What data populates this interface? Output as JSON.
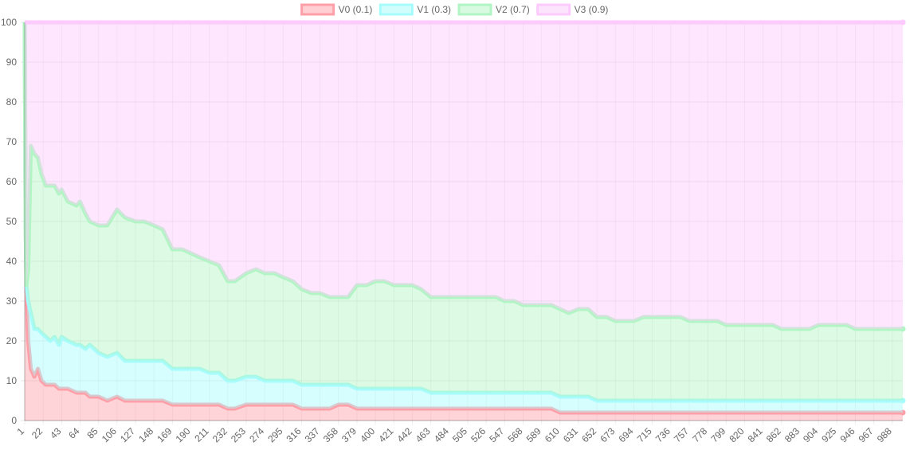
{
  "chart_data": {
    "type": "area",
    "stacked": true,
    "grid": true,
    "legend_position": "top",
    "ylim": [
      0,
      100
    ],
    "y_ticks": [
      0,
      10,
      20,
      30,
      40,
      50,
      60,
      70,
      80,
      90,
      100
    ],
    "x_tick_labels": [
      "1",
      "22",
      "43",
      "64",
      "85",
      "106",
      "127",
      "148",
      "169",
      "190",
      "211",
      "232",
      "253",
      "274",
      "295",
      "316",
      "337",
      "358",
      "379",
      "400",
      "421",
      "442",
      "463",
      "484",
      "505",
      "526",
      "547",
      "568",
      "589",
      "610",
      "631",
      "652",
      "673",
      "694",
      "715",
      "736",
      "757",
      "778",
      "799",
      "820",
      "841",
      "862",
      "883",
      "904",
      "925",
      "946",
      "967",
      "988"
    ],
    "x_range": [
      1,
      1000
    ],
    "x": [
      1,
      2,
      3,
      5,
      8,
      12,
      16,
      20,
      25,
      30,
      35,
      40,
      43,
      50,
      60,
      64,
      70,
      75,
      85,
      95,
      106,
      115,
      127,
      137,
      148,
      158,
      169,
      180,
      190,
      200,
      211,
      222,
      232,
      240,
      253,
      264,
      274,
      285,
      295,
      306,
      316,
      327,
      337,
      348,
      358,
      369,
      379,
      390,
      400,
      410,
      421,
      432,
      442,
      452,
      463,
      474,
      484,
      495,
      505,
      516,
      526,
      537,
      547,
      558,
      568,
      579,
      589,
      600,
      610,
      620,
      631,
      642,
      652,
      663,
      673,
      684,
      694,
      705,
      715,
      726,
      736,
      747,
      757,
      768,
      778,
      789,
      799,
      810,
      820,
      831,
      841,
      852,
      862,
      873,
      883,
      894,
      904,
      915,
      925,
      936,
      946,
      957,
      967,
      978,
      988,
      1000
    ],
    "series": [
      {
        "name": "V0 (0.1)",
        "color": "#ff9fa8",
        "values": [
          100,
          50,
          33,
          20,
          13,
          11,
          13,
          10,
          9,
          9,
          9,
          8,
          8,
          8,
          7,
          7,
          7,
          6,
          6,
          5,
          6,
          5,
          5,
          5,
          5,
          5,
          4,
          4,
          4,
          4,
          4,
          4,
          3,
          3,
          4,
          4,
          4,
          4,
          4,
          4,
          3,
          3,
          3,
          3,
          4,
          4,
          3,
          3,
          3,
          3,
          3,
          3,
          3,
          3,
          3,
          3,
          3,
          3,
          3,
          3,
          3,
          3,
          3,
          3,
          3,
          3,
          3,
          3,
          2,
          2,
          2,
          2,
          2,
          2,
          2,
          2,
          2,
          2,
          2,
          2,
          2,
          2,
          2,
          2,
          2,
          2,
          2,
          2,
          2,
          2,
          2,
          2,
          2,
          2,
          2,
          2,
          2,
          2,
          2,
          2,
          2,
          2,
          2,
          2,
          2,
          2
        ]
      },
      {
        "name": "V1 (0.3)",
        "color": "#a6fcfc",
        "values": [
          0,
          0,
          1,
          10,
          14,
          12,
          10,
          12,
          12,
          11,
          12,
          11,
          13,
          12,
          12,
          12,
          11,
          13,
          11,
          11,
          11,
          10,
          10,
          10,
          10,
          10,
          9,
          9,
          9,
          9,
          8,
          8,
          7,
          7,
          7,
          7,
          6,
          6,
          6,
          6,
          6,
          6,
          6,
          6,
          5,
          5,
          5,
          5,
          5,
          5,
          5,
          5,
          5,
          5,
          4,
          4,
          4,
          4,
          4,
          4,
          4,
          4,
          4,
          4,
          4,
          4,
          4,
          4,
          4,
          4,
          4,
          4,
          3,
          3,
          3,
          3,
          3,
          3,
          3,
          3,
          3,
          3,
          3,
          3,
          3,
          3,
          3,
          3,
          3,
          3,
          3,
          3,
          3,
          3,
          3,
          3,
          3,
          3,
          3,
          3,
          3,
          3,
          3,
          3,
          3,
          3
        ]
      },
      {
        "name": "V2 (0.7)",
        "color": "#b2f5c4",
        "values": [
          0,
          0,
          0,
          8,
          42,
          44,
          43,
          40,
          38,
          39,
          38,
          38,
          37,
          35,
          35,
          36,
          34,
          31,
          32,
          33,
          36,
          36,
          35,
          35,
          34,
          33,
          30,
          30,
          29,
          28,
          28,
          27,
          25,
          25,
          26,
          27,
          27,
          27,
          26,
          25,
          24,
          23,
          23,
          22,
          22,
          22,
          26,
          26,
          27,
          27,
          26,
          26,
          26,
          25,
          24,
          24,
          24,
          24,
          24,
          24,
          24,
          24,
          23,
          23,
          22,
          22,
          22,
          22,
          22,
          21,
          22,
          22,
          21,
          21,
          20,
          20,
          20,
          21,
          21,
          21,
          21,
          21,
          20,
          20,
          20,
          20,
          19,
          19,
          19,
          19,
          19,
          19,
          18,
          18,
          18,
          18,
          19,
          19,
          19,
          19,
          18,
          18,
          18,
          18,
          18,
          18
        ]
      },
      {
        "name": "V3 (0.9)",
        "color": "#fccafc",
        "values": [
          0,
          50,
          66,
          62,
          31,
          33,
          34,
          38,
          41,
          41,
          41,
          43,
          42,
          45,
          46,
          45,
          48,
          50,
          51,
          51,
          47,
          49,
          50,
          50,
          51,
          52,
          57,
          57,
          58,
          59,
          60,
          61,
          65,
          65,
          63,
          62,
          63,
          63,
          64,
          65,
          67,
          68,
          68,
          69,
          69,
          69,
          66,
          66,
          65,
          65,
          66,
          66,
          66,
          67,
          69,
          69,
          69,
          69,
          69,
          69,
          69,
          69,
          70,
          70,
          71,
          71,
          71,
          71,
          72,
          73,
          72,
          72,
          74,
          74,
          75,
          75,
          75,
          74,
          74,
          74,
          74,
          74,
          75,
          75,
          75,
          75,
          76,
          76,
          76,
          76,
          76,
          76,
          77,
          77,
          77,
          77,
          76,
          76,
          76,
          76,
          77,
          77,
          77,
          77,
          77,
          77
        ]
      }
    ]
  }
}
